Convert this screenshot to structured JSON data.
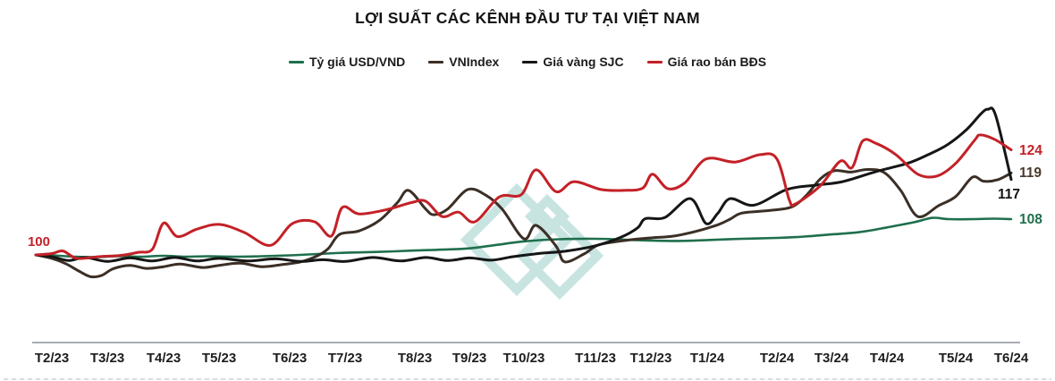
{
  "title": "LỢI SUẤT CÁC KÊNH ĐẦU TƯ TẠI VIỆT NAM",
  "colors": {
    "background": "#ffffff",
    "title": "#141414",
    "axis_line": "#a8adb2",
    "tick_label": "#1d1d1d",
    "watermark": "#49a79d"
  },
  "watermark": {
    "name": "diamond-logo",
    "opacity": 0.3
  },
  "chart_data": {
    "type": "line",
    "title": "LỢI SUẤT CÁC KÊNH ĐẦU TƯ TẠI VIỆT NAM",
    "xlabel": "",
    "ylabel": "",
    "grid": false,
    "y_axis_visible": false,
    "legend_position": "top",
    "baseline_value": 100,
    "ylim": [
      94,
      136
    ],
    "start_label": {
      "text": "100",
      "color": "#c32127"
    },
    "x_tick_labels": [
      "T2/23",
      "T3/23",
      "T4/23",
      "T5/23",
      "T6/23",
      "T7/23",
      "T8/23",
      "T9/23",
      "T10/23",
      "T11/23",
      "T12/23",
      "T1/24",
      "T2/24",
      "T3/24",
      "T4/24",
      "T5/24",
      "T6/24"
    ],
    "series": [
      {
        "name": "Tỷ giá USD/VND",
        "color": "#1f6f4d",
        "label_color": "#1f6f4d",
        "end_label": "108",
        "end_value": 108.2,
        "points": [
          [
            -0.29,
            100
          ],
          [
            0,
            99.9
          ],
          [
            0.4,
            99.6
          ],
          [
            0.8,
            99.5
          ],
          [
            1.2,
            99.7
          ],
          [
            1.6,
            99.6
          ],
          [
            2,
            99.8
          ],
          [
            2.4,
            99.6
          ],
          [
            2.8,
            99.7
          ],
          [
            3.2,
            99.6
          ],
          [
            3.6,
            99.7
          ],
          [
            4,
            99.9
          ],
          [
            4.5,
            100.2
          ],
          [
            5,
            100.5
          ],
          [
            5.5,
            100.7
          ],
          [
            6,
            101
          ],
          [
            6.5,
            101.2
          ],
          [
            7,
            101.5
          ],
          [
            7.5,
            102.3
          ],
          [
            8,
            103.1
          ],
          [
            8.5,
            103.6
          ],
          [
            9,
            103.7
          ],
          [
            9.5,
            103.5
          ],
          [
            10,
            103.3
          ],
          [
            10.5,
            103.2
          ],
          [
            11,
            103.4
          ],
          [
            11.5,
            103.7
          ],
          [
            12,
            103.9
          ],
          [
            12.5,
            104.2
          ],
          [
            13,
            104.7
          ],
          [
            13.5,
            105.2
          ],
          [
            14,
            106.3
          ],
          [
            14.4,
            107.5
          ],
          [
            14.66,
            108.5
          ],
          [
            14.9,
            108.2
          ],
          [
            15.3,
            108.2
          ],
          [
            15.7,
            108.3
          ],
          [
            16,
            108.2
          ]
        ]
      },
      {
        "name": "VNIndex",
        "color": "#3b2f26",
        "label_color": "#4a3a2b",
        "end_label": "119",
        "end_value": 118.8,
        "points": [
          [
            -0.29,
            100
          ],
          [
            0,
            99.2
          ],
          [
            0.25,
            98
          ],
          [
            0.5,
            96.2
          ],
          [
            0.7,
            95
          ],
          [
            0.9,
            95.3
          ],
          [
            1.1,
            96.8
          ],
          [
            1.4,
            97.6
          ],
          [
            1.7,
            96.9
          ],
          [
            2,
            97.3
          ],
          [
            2.3,
            97.9
          ],
          [
            2.7,
            97.1
          ],
          [
            3,
            97.6
          ],
          [
            3.3,
            98.1
          ],
          [
            3.6,
            97.3
          ],
          [
            3.9,
            97.8
          ],
          [
            4.2,
            98.4
          ],
          [
            4.5,
            99.8
          ],
          [
            4.7,
            101.5
          ],
          [
            4.9,
            104.7
          ],
          [
            5.2,
            105.5
          ],
          [
            5.5,
            108
          ],
          [
            5.75,
            112
          ],
          [
            5.91,
            114.8
          ],
          [
            6.2,
            110.5
          ],
          [
            6.35,
            109.2
          ],
          [
            6.6,
            110.5
          ],
          [
            6.97,
            115
          ],
          [
            7.3,
            113.7
          ],
          [
            7.6,
            110.5
          ],
          [
            8,
            103.7
          ],
          [
            8.17,
            106.8
          ],
          [
            8.45,
            102
          ],
          [
            8.57,
            98.4
          ],
          [
            8.85,
            100.3
          ],
          [
            9.06,
            102.3
          ],
          [
            9.6,
            103.4
          ],
          [
            10,
            103.9
          ],
          [
            10.4,
            104.3
          ],
          [
            10.8,
            105.4
          ],
          [
            11.15,
            106.9
          ],
          [
            11.33,
            108.2
          ],
          [
            11.5,
            109.6
          ],
          [
            11.9,
            110.2
          ],
          [
            12.27,
            111
          ],
          [
            12.55,
            113.8
          ],
          [
            12.8,
            117.5
          ],
          [
            13.05,
            119.3
          ],
          [
            13.35,
            119
          ],
          [
            13.65,
            119.6
          ],
          [
            13.95,
            118.9
          ],
          [
            14.2,
            114.8
          ],
          [
            14.45,
            108.8
          ],
          [
            14.75,
            111.3
          ],
          [
            15,
            113.4
          ],
          [
            15.3,
            117.8
          ],
          [
            15.5,
            116.9
          ],
          [
            15.75,
            117.2
          ],
          [
            16,
            118.8
          ]
        ]
      },
      {
        "name": "Giá vàng SJC",
        "color": "#161616",
        "label_color": "#111111",
        "end_label": "117",
        "end_value": 117.3,
        "points": [
          [
            -0.29,
            100
          ],
          [
            0,
            99.6
          ],
          [
            0.3,
            98.7
          ],
          [
            0.6,
            99.4
          ],
          [
            1,
            98.5
          ],
          [
            1.4,
            99.3
          ],
          [
            1.8,
            98.6
          ],
          [
            2.2,
            99.4
          ],
          [
            2.6,
            98.6
          ],
          [
            3,
            99.2
          ],
          [
            3.4,
            98.6
          ],
          [
            3.8,
            99.1
          ],
          [
            4.2,
            98.5
          ],
          [
            4.6,
            98.9
          ],
          [
            5,
            98.5
          ],
          [
            5.4,
            99.4
          ],
          [
            5.8,
            98.6
          ],
          [
            6.2,
            99.4
          ],
          [
            6.6,
            98.7
          ],
          [
            7,
            99.3
          ],
          [
            7.4,
            98.8
          ],
          [
            7.8,
            99.6
          ],
          [
            8.2,
            100.3
          ],
          [
            8.6,
            100.9
          ],
          [
            9,
            102.1
          ],
          [
            9.45,
            104
          ],
          [
            9.76,
            106.2
          ],
          [
            9.9,
            108.3
          ],
          [
            10.25,
            108.6
          ],
          [
            10.7,
            112.9
          ],
          [
            10.98,
            107.2
          ],
          [
            11.15,
            109.5
          ],
          [
            11.33,
            112.9
          ],
          [
            11.67,
            111.4
          ],
          [
            12.18,
            115
          ],
          [
            12.72,
            116
          ],
          [
            13.2,
            116.8
          ],
          [
            13.8,
            119.1
          ],
          [
            14.3,
            121
          ],
          [
            14.6,
            123
          ],
          [
            14.88,
            125.3
          ],
          [
            15.2,
            128.8
          ],
          [
            15.45,
            132.3
          ],
          [
            15.58,
            133.4
          ],
          [
            15.72,
            132
          ],
          [
            16,
            117.3
          ]
        ]
      },
      {
        "name": "Giá rao bán BĐS",
        "color": "#c32127",
        "label_color": "#c32127",
        "end_label": "124",
        "end_value": 124.1,
        "points": [
          [
            -0.29,
            100
          ],
          [
            0,
            100.3
          ],
          [
            0.2,
            100.9
          ],
          [
            0.45,
            99.2
          ],
          [
            0.85,
            99.6
          ],
          [
            1.25,
            99.9
          ],
          [
            1.55,
            100.6
          ],
          [
            1.8,
            101.3
          ],
          [
            2,
            107.3
          ],
          [
            2.25,
            104.2
          ],
          [
            2.6,
            105.9
          ],
          [
            3,
            107
          ],
          [
            3.35,
            105.2
          ],
          [
            3.73,
            102.2
          ],
          [
            4.05,
            107.2
          ],
          [
            4.45,
            107.6
          ],
          [
            4.75,
            104.3
          ],
          [
            4.95,
            110.9
          ],
          [
            5.2,
            109.4
          ],
          [
            5.6,
            110.4
          ],
          [
            5.95,
            112
          ],
          [
            6.2,
            112.3
          ],
          [
            6.5,
            108.8
          ],
          [
            6.8,
            109.8
          ],
          [
            7.1,
            107.6
          ],
          [
            7.55,
            113.3
          ],
          [
            7.95,
            113.8
          ],
          [
            8.17,
            119.5
          ],
          [
            8.45,
            114.5
          ],
          [
            8.7,
            116.8
          ],
          [
            9.1,
            115
          ],
          [
            9.5,
            114.8
          ],
          [
            9.85,
            115.3
          ],
          [
            10.03,
            118.5
          ],
          [
            10.3,
            115.2
          ],
          [
            10.6,
            116.5
          ],
          [
            10.98,
            122
          ],
          [
            11.4,
            121.3
          ],
          [
            11.76,
            123
          ],
          [
            12,
            122
          ],
          [
            12.23,
            112.5
          ],
          [
            12.34,
            111.7
          ],
          [
            12.79,
            115.8
          ],
          [
            13.16,
            121.5
          ],
          [
            13.37,
            120
          ],
          [
            13.56,
            126.1
          ],
          [
            13.8,
            125.6
          ],
          [
            14.13,
            123
          ],
          [
            14.45,
            118.5
          ],
          [
            14.73,
            118.1
          ],
          [
            15,
            121
          ],
          [
            15.34,
            126.3
          ],
          [
            15.44,
            127.5
          ],
          [
            15.7,
            126.5
          ],
          [
            16,
            124.1
          ]
        ]
      }
    ]
  }
}
